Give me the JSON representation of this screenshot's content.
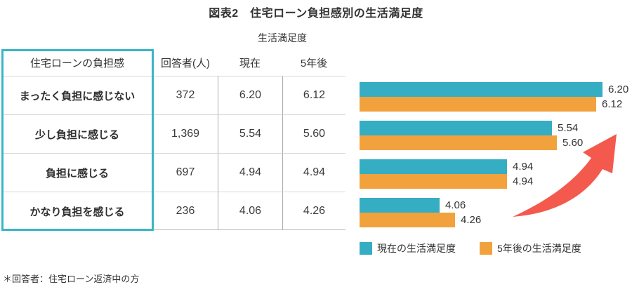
{
  "title": "図表2　住宅ローン負担感別の生活満足度",
  "table": {
    "group_header": "生活満足度",
    "columns": {
      "burden": "住宅ローンの負担感",
      "respondents": "回答者(人)",
      "current": "現在",
      "future": "5年後"
    },
    "rows": [
      {
        "label": "まったく負担に感じない",
        "respondents": "372",
        "current": "6.20",
        "future": "6.12"
      },
      {
        "label": "少し負担に感じる",
        "respondents": "1,369",
        "current": "5.54",
        "future": "5.60"
      },
      {
        "label": "負担に感じる",
        "respondents": "697",
        "current": "4.94",
        "future": "4.94"
      },
      {
        "label": "かなり負担を感じる",
        "respondents": "236",
        "current": "4.06",
        "future": "4.26"
      }
    ]
  },
  "chart_data": {
    "type": "bar",
    "orientation": "horizontal",
    "title": "",
    "categories": [
      "まったく負担に感じない",
      "少し負担に感じる",
      "負担に感じる",
      "かなり負担を感じる"
    ],
    "series": [
      {
        "name": "現在の生活満足度",
        "color": "#35adc3",
        "values": [
          6.2,
          5.54,
          4.94,
          4.06
        ],
        "labels": [
          "6.20",
          "5.54",
          "4.94",
          "4.06"
        ]
      },
      {
        "name": "5年後の生活満足度",
        "color": "#f2a23c",
        "values": [
          6.12,
          5.6,
          4.94,
          4.26
        ],
        "labels": [
          "6.12",
          "5.60",
          "4.94",
          "4.26"
        ]
      }
    ],
    "xlim": [
      3,
      6.5
    ],
    "grid": false,
    "value_labels": true,
    "legend_position": "bottom",
    "annotation": "upward-trend-arrow"
  },
  "legend": {
    "current": "現在の生活満足度",
    "future": "5年後の生活満足度"
  },
  "footnote": "＊回答者：住宅ローン返済中の方",
  "colors": {
    "current_bar": "#35adc3",
    "future_bar": "#f2a23c",
    "arrow": "#f4594e",
    "table_highlight_border": "#3ab5c6",
    "row_line": "#d8d8d8",
    "column_line": "#acacac",
    "text": "#333333"
  }
}
